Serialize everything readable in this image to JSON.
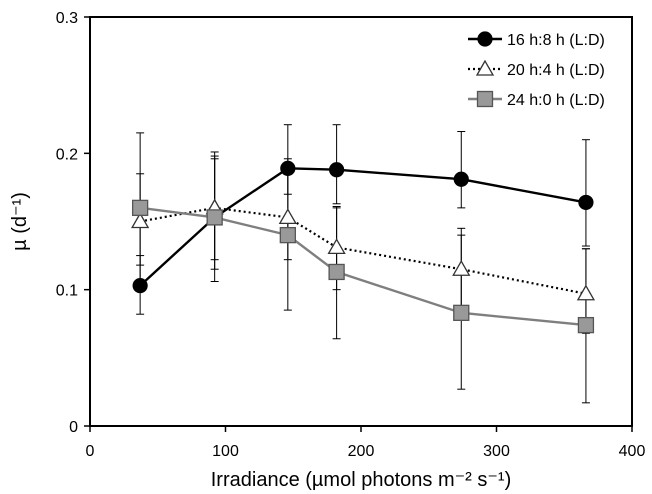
{
  "chart_data": {
    "type": "line",
    "xlabel": "Irradiance (µmol photons m⁻² s⁻¹)",
    "ylabel": "µ (d⁻¹)",
    "xlim": [
      0,
      400
    ],
    "ylim": [
      0,
      0.3
    ],
    "xticks": [
      "0",
      "100",
      "200",
      "300",
      "400"
    ],
    "yticks": [
      "0",
      "0.1",
      "0.2",
      "0.3"
    ],
    "grid": false,
    "legend_position": "top-right",
    "series": [
      {
        "name": "16 h:8 h (L:D)",
        "color": "#000000",
        "line_style": "solid",
        "marker": "circle",
        "marker_fill": "#000000",
        "x": [
          37,
          92,
          146,
          182,
          274,
          366
        ],
        "y": [
          0.103,
          0.153,
          0.189,
          0.188,
          0.181,
          0.164
        ],
        "err_low": [
          0.082,
          0.106,
          0.17,
          0.163,
          0.16,
          0.132
        ],
        "err_high": [
          0.125,
          0.201,
          0.221,
          0.221,
          0.216,
          0.21
        ]
      },
      {
        "name": "20 h:4 h (L:D)",
        "color": "#000000",
        "line_style": "dotted",
        "marker": "triangle",
        "marker_fill": "#ffffff",
        "x": [
          37,
          92,
          146,
          182,
          274,
          366
        ],
        "y": [
          0.15,
          0.16,
          0.153,
          0.131,
          0.115,
          0.097
        ],
        "err_low": [
          0.118,
          0.122,
          0.122,
          0.1,
          0.085,
          0.068
        ],
        "err_high": [
          0.185,
          0.198,
          0.185,
          0.16,
          0.145,
          0.13
        ]
      },
      {
        "name": "24 h:0 h (L:D)",
        "color": "#7f7f7f",
        "line_style": "solid",
        "marker": "square",
        "marker_fill": "#999999",
        "x": [
          37,
          92,
          146,
          182,
          274,
          366
        ],
        "y": [
          0.16,
          0.153,
          0.14,
          0.113,
          0.083,
          0.074
        ],
        "err_low": [
          0.105,
          0.115,
          0.085,
          0.064,
          0.027,
          0.017
        ],
        "err_high": [
          0.215,
          0.196,
          0.196,
          0.161,
          0.14,
          0.13
        ]
      }
    ]
  }
}
